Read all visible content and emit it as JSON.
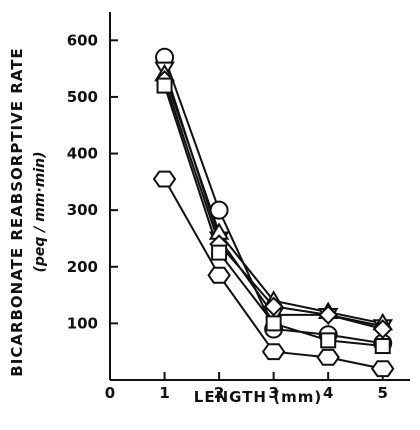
{
  "chart_data": {
    "type": "line",
    "title": "",
    "xlabel": "LENGTH (mm)",
    "ylabel": "BICARBONATE REABSORPTIVE RATE",
    "ylabel_units": "(peq / mm·min)",
    "xlim": [
      0,
      5.5
    ],
    "ylim": [
      0,
      650
    ],
    "x_ticks": [
      0,
      1,
      2,
      3,
      4,
      5
    ],
    "x_tick_labels": [
      "0",
      "1",
      "2",
      "3",
      "4",
      "5"
    ],
    "y_ticks": [
      100,
      200,
      300,
      400,
      500,
      600
    ],
    "y_tick_labels": [
      "100",
      "200",
      "300",
      "400",
      "500",
      "600"
    ],
    "grid": false,
    "colors": {
      "line": "#111111",
      "marker_fill": "#ffffff"
    },
    "series": [
      {
        "marker": "circle",
        "x": [
          1,
          2,
          3,
          4,
          5
        ],
        "values": [
          570,
          300,
          90,
          80,
          65
        ]
      },
      {
        "marker": "triangle-down",
        "x": [
          1,
          2,
          3,
          4,
          5
        ],
        "values": [
          550,
          250,
          115,
          115,
          95
        ]
      },
      {
        "marker": "triangle-up",
        "x": [
          1,
          2,
          3,
          4,
          5
        ],
        "values": [
          540,
          260,
          140,
          120,
          100
        ]
      },
      {
        "marker": "diamond",
        "x": [
          1,
          2,
          3,
          4,
          5
        ],
        "values": [
          530,
          240,
          130,
          115,
          90
        ]
      },
      {
        "marker": "square",
        "x": [
          1,
          2,
          3,
          4,
          5
        ],
        "values": [
          520,
          225,
          100,
          70,
          60
        ]
      },
      {
        "marker": "hexagon",
        "x": [
          1,
          2,
          3,
          4,
          5
        ],
        "values": [
          355,
          185,
          50,
          40,
          20
        ]
      }
    ]
  }
}
